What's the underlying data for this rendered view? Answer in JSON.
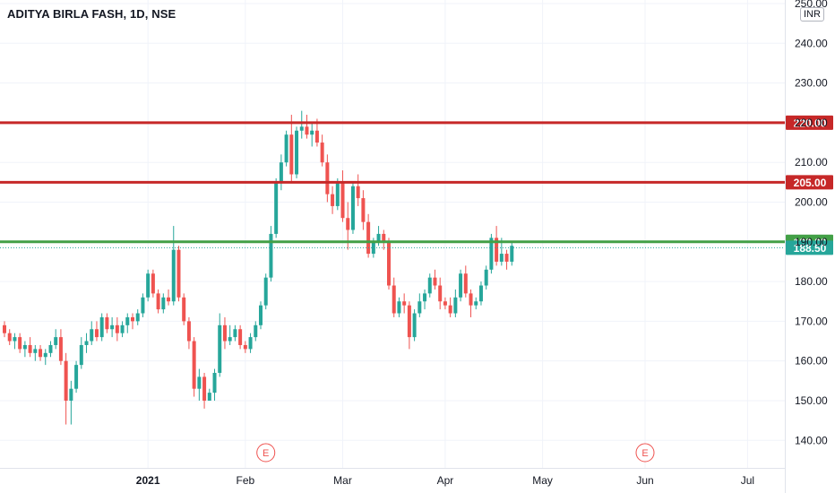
{
  "header": {
    "symbol_title": "ADITYA BIRLA FASH, 1D, NSE",
    "currency": "INR"
  },
  "colors": {
    "up": "#26a69a",
    "down": "#ef5350",
    "level_red": "#c62828",
    "level_green": "#43a047",
    "last_price": "#26a69a",
    "grid": "#f0f3fa",
    "axis_text": "#131722",
    "earnings": "#ef5350"
  },
  "chart_data": {
    "type": "candlestick",
    "title": "ADITYA BIRLA FASH, 1D, NSE",
    "ylim": [
      136,
      250
    ],
    "grid": true,
    "y_ticks": [
      {
        "value": 140,
        "label": "140.00"
      },
      {
        "value": 150,
        "label": "150.00"
      },
      {
        "value": 160,
        "label": "160.00"
      },
      {
        "value": 170,
        "label": "170.00"
      },
      {
        "value": 180,
        "label": "180.00"
      },
      {
        "value": 190,
        "label": "190.00"
      },
      {
        "value": 200,
        "label": "200.00"
      },
      {
        "value": 210,
        "label": "210.00"
      },
      {
        "value": 220,
        "label": "220.00"
      },
      {
        "value": 230,
        "label": "230.00"
      },
      {
        "value": 240,
        "label": "240.00"
      },
      {
        "value": 250,
        "label": "250.00"
      }
    ],
    "x_ticks": [
      {
        "index": 28,
        "label": "2021"
      },
      {
        "index": 47,
        "label": "Feb"
      },
      {
        "index": 66,
        "label": "Mar"
      },
      {
        "index": 86,
        "label": "Apr"
      },
      {
        "index": 105,
        "label": "May"
      },
      {
        "index": 125,
        "label": "Jun"
      },
      {
        "index": 145,
        "label": "Jul"
      }
    ],
    "levels": [
      {
        "value": 220,
        "label": "220.00",
        "color": "#c62828",
        "style": "solid"
      },
      {
        "value": 205,
        "label": "205.00",
        "color": "#c62828",
        "style": "solid"
      },
      {
        "value": 190,
        "label": "190.00",
        "color": "#43a047",
        "style": "solid"
      },
      {
        "value": 188.5,
        "label": "188.50",
        "color": "#26a69a",
        "style": "dotted"
      }
    ],
    "earnings": [
      {
        "index": 51,
        "label": "E"
      },
      {
        "index": 125,
        "label": "E"
      }
    ],
    "candles": [
      [
        169,
        170,
        166,
        167
      ],
      [
        167,
        168,
        164,
        165
      ],
      [
        165,
        167,
        163,
        166
      ],
      [
        166,
        167,
        162,
        163
      ],
      [
        163,
        165,
        161,
        164
      ],
      [
        164,
        166,
        161,
        162
      ],
      [
        162,
        164,
        160,
        163
      ],
      [
        163,
        164,
        160,
        161
      ],
      [
        161,
        163,
        159,
        162
      ],
      [
        162,
        165,
        161,
        164
      ],
      [
        164,
        168,
        163,
        166
      ],
      [
        166,
        168,
        159,
        160
      ],
      [
        160,
        162,
        144,
        150
      ],
      [
        150,
        155,
        144,
        153
      ],
      [
        153,
        160,
        152,
        159
      ],
      [
        159,
        166,
        158,
        164
      ],
      [
        164,
        167,
        162,
        165
      ],
      [
        165,
        170,
        164,
        168
      ],
      [
        168,
        170,
        165,
        166
      ],
      [
        166,
        172,
        165,
        171
      ],
      [
        171,
        172,
        167,
        168
      ],
      [
        168,
        171,
        166,
        169
      ],
      [
        169,
        171,
        165,
        167
      ],
      [
        167,
        170,
        166,
        169
      ],
      [
        169,
        172,
        167,
        171
      ],
      [
        171,
        172,
        168,
        170
      ],
      [
        170,
        173,
        169,
        172
      ],
      [
        172,
        177,
        171,
        176
      ],
      [
        176,
        183,
        175,
        182
      ],
      [
        182,
        183,
        176,
        177
      ],
      [
        177,
        178,
        172,
        173
      ],
      [
        173,
        177,
        172,
        176
      ],
      [
        176,
        178,
        174,
        175
      ],
      [
        175,
        194,
        174,
        188
      ],
      [
        188,
        189,
        175,
        176
      ],
      [
        176,
        177,
        169,
        170
      ],
      [
        170,
        171,
        163,
        165
      ],
      [
        165,
        166,
        151,
        153
      ],
      [
        153,
        158,
        150,
        156
      ],
      [
        156,
        157,
        148,
        150
      ],
      [
        150,
        153,
        150,
        152
      ],
      [
        152,
        158,
        150,
        157
      ],
      [
        157,
        172,
        156,
        169
      ],
      [
        169,
        171,
        163,
        165
      ],
      [
        165,
        169,
        164,
        166
      ],
      [
        166,
        169,
        165,
        168
      ],
      [
        168,
        169,
        163,
        164
      ],
      [
        164,
        165,
        162,
        163
      ],
      [
        163,
        167,
        162,
        166
      ],
      [
        166,
        170,
        165,
        169
      ],
      [
        169,
        175,
        168,
        174
      ],
      [
        174,
        182,
        173,
        181
      ],
      [
        181,
        194,
        180,
        192
      ],
      [
        192,
        206,
        191,
        205
      ],
      [
        205,
        212,
        203,
        210
      ],
      [
        210,
        218,
        209,
        217
      ],
      [
        217,
        222,
        205,
        207
      ],
      [
        207,
        219,
        206,
        218
      ],
      [
        218,
        223,
        216,
        219
      ],
      [
        219,
        222,
        216,
        217
      ],
      [
        217,
        220,
        214,
        218
      ],
      [
        218,
        221,
        214,
        215
      ],
      [
        215,
        217,
        209,
        210
      ],
      [
        210,
        212,
        200,
        202
      ],
      [
        202,
        204,
        197,
        199
      ],
      [
        199,
        206,
        198,
        205
      ],
      [
        205,
        208,
        195,
        196
      ],
      [
        196,
        200,
        188,
        193
      ],
      [
        193,
        205,
        192,
        204
      ],
      [
        204,
        207,
        199,
        201
      ],
      [
        201,
        203,
        193,
        195
      ],
      [
        195,
        197,
        186,
        187
      ],
      [
        187,
        191,
        186,
        190
      ],
      [
        190,
        194,
        189,
        192
      ],
      [
        192,
        193,
        188,
        190
      ],
      [
        190,
        191,
        178,
        179
      ],
      [
        179,
        181,
        171,
        172
      ],
      [
        172,
        176,
        171,
        175
      ],
      [
        175,
        177,
        172,
        174
      ],
      [
        174,
        175,
        163,
        166
      ],
      [
        166,
        173,
        165,
        172
      ],
      [
        172,
        177,
        171,
        175
      ],
      [
        175,
        178,
        173,
        177
      ],
      [
        177,
        182,
        176,
        181
      ],
      [
        181,
        183,
        178,
        179
      ],
      [
        179,
        181,
        173,
        175
      ],
      [
        175,
        176,
        173,
        174
      ],
      [
        174,
        176,
        171,
        172
      ],
      [
        172,
        178,
        171,
        176
      ],
      [
        176,
        183,
        175,
        182
      ],
      [
        182,
        184,
        176,
        177
      ],
      [
        177,
        178,
        171,
        174
      ],
      [
        174,
        176,
        173,
        175
      ],
      [
        175,
        180,
        174,
        179
      ],
      [
        179,
        184,
        178,
        183
      ],
      [
        183,
        192,
        182,
        191
      ],
      [
        191,
        194,
        184,
        185
      ],
      [
        185,
        191,
        184,
        187
      ],
      [
        187,
        188,
        183,
        185
      ],
      [
        185,
        190,
        184,
        189
      ]
    ]
  }
}
